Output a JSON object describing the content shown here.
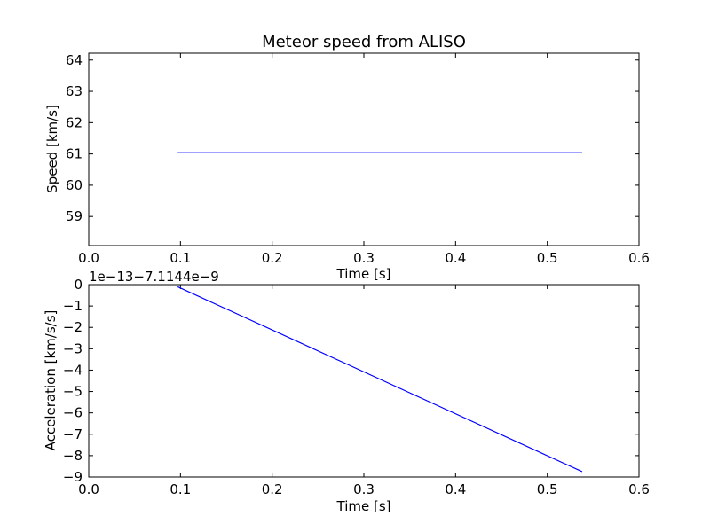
{
  "chart_data": [
    {
      "type": "line",
      "title": "Meteor speed from  ALISO",
      "xlabel": "Time [s]",
      "ylabel": "Speed [km/s]",
      "xlim": [
        0.0,
        0.6
      ],
      "ylim": [
        58.07,
        64.22
      ],
      "xticks": [
        "0.0",
        "0.1",
        "0.2",
        "0.3",
        "0.4",
        "0.5",
        "0.6"
      ],
      "yticks": [
        "59",
        "60",
        "61",
        "62",
        "63",
        "64"
      ],
      "grid": false,
      "series": [
        {
          "x": [
            0.097,
            0.538
          ],
          "y": [
            61.04,
            61.04
          ],
          "color": "#0000ff"
        }
      ]
    },
    {
      "type": "line",
      "title": "",
      "offset_text": "1e−13−7.1144e−9",
      "xlabel": "Time [s]",
      "ylabel": "Acceleration [km/s/s]",
      "xlim": [
        0.0,
        0.6
      ],
      "ylim": [
        -9,
        0
      ],
      "xticks": [
        "0.0",
        "0.1",
        "0.2",
        "0.3",
        "0.4",
        "0.5",
        "0.6"
      ],
      "yticks": [
        "0",
        "−1",
        "−2",
        "−3",
        "−4",
        "−5",
        "−6",
        "−7",
        "−8",
        "−9"
      ],
      "grid": false,
      "series": [
        {
          "x": [
            0.097,
            0.538
          ],
          "y": [
            -0.1,
            -8.75
          ],
          "color": "#0000ff"
        }
      ]
    }
  ]
}
